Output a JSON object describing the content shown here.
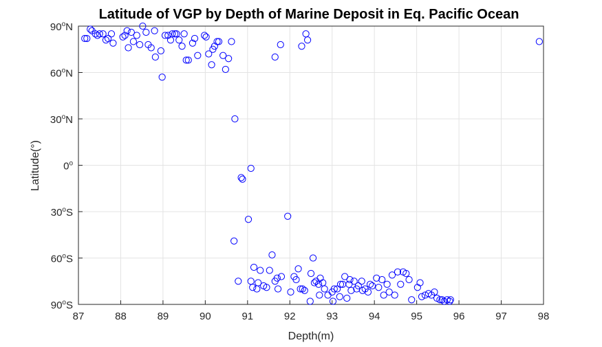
{
  "chart_data": {
    "type": "scatter",
    "title": "Latitude of VGP by Depth of Marine Deposit in Eq. Pacific Ocean",
    "xlabel": "Depth(m)",
    "ylabel": "Latitude(°)",
    "xlim": [
      87,
      98
    ],
    "ylim": [
      -90,
      90
    ],
    "grid": true,
    "marker": "open-circle",
    "marker_color": "#0000FF",
    "x_ticks": [
      {
        "value": 87,
        "label": "87"
      },
      {
        "value": 88,
        "label": "88"
      },
      {
        "value": 89,
        "label": "89"
      },
      {
        "value": 90,
        "label": "90"
      },
      {
        "value": 91,
        "label": "91"
      },
      {
        "value": 92,
        "label": "92"
      },
      {
        "value": 93,
        "label": "93"
      },
      {
        "value": 94,
        "label": "94"
      },
      {
        "value": 95,
        "label": "95"
      },
      {
        "value": 96,
        "label": "96"
      },
      {
        "value": 97,
        "label": "97"
      },
      {
        "value": 98,
        "label": "98"
      }
    ],
    "y_ticks": [
      {
        "value": 90,
        "num": "90",
        "hemi": "N"
      },
      {
        "value": 60,
        "num": "60",
        "hemi": "N"
      },
      {
        "value": 30,
        "num": "30",
        "hemi": "N"
      },
      {
        "value": 0,
        "num": "0",
        "hemi": ""
      },
      {
        "value": -30,
        "num": "30",
        "hemi": "S"
      },
      {
        "value": -60,
        "num": "60",
        "hemi": "S"
      },
      {
        "value": -90,
        "num": "90",
        "hemi": "S"
      }
    ],
    "points": [
      [
        87.15,
        82
      ],
      [
        87.2,
        82
      ],
      [
        87.28,
        88
      ],
      [
        87.32,
        87
      ],
      [
        87.4,
        85
      ],
      [
        87.45,
        84
      ],
      [
        87.5,
        85
      ],
      [
        87.58,
        85
      ],
      [
        87.65,
        81
      ],
      [
        87.7,
        82
      ],
      [
        87.78,
        85
      ],
      [
        87.82,
        79
      ],
      [
        88.05,
        83
      ],
      [
        88.1,
        84
      ],
      [
        88.15,
        87
      ],
      [
        88.18,
        76
      ],
      [
        88.25,
        86
      ],
      [
        88.3,
        80
      ],
      [
        88.38,
        84
      ],
      [
        88.45,
        78
      ],
      [
        88.52,
        90
      ],
      [
        88.6,
        86
      ],
      [
        88.65,
        78
      ],
      [
        88.72,
        76
      ],
      [
        88.8,
        87
      ],
      [
        88.82,
        70
      ],
      [
        88.95,
        74
      ],
      [
        88.98,
        57
      ],
      [
        89.05,
        84
      ],
      [
        89.12,
        84
      ],
      [
        89.18,
        81
      ],
      [
        89.22,
        85
      ],
      [
        89.28,
        85
      ],
      [
        89.32,
        85
      ],
      [
        89.38,
        81
      ],
      [
        89.45,
        77
      ],
      [
        89.5,
        85
      ],
      [
        89.55,
        68
      ],
      [
        89.6,
        68
      ],
      [
        89.7,
        79
      ],
      [
        89.75,
        82
      ],
      [
        89.82,
        71
      ],
      [
        89.98,
        84
      ],
      [
        90.02,
        83
      ],
      [
        90.08,
        72
      ],
      [
        90.15,
        65
      ],
      [
        90.18,
        75
      ],
      [
        90.22,
        77
      ],
      [
        90.28,
        80
      ],
      [
        90.32,
        80
      ],
      [
        90.42,
        71
      ],
      [
        90.48,
        62
      ],
      [
        90.55,
        69
      ],
      [
        90.62,
        80
      ],
      [
        90.7,
        30
      ],
      [
        90.85,
        -8
      ],
      [
        90.88,
        -9
      ],
      [
        91.02,
        -35
      ],
      [
        91.08,
        -2
      ],
      [
        90.68,
        -49
      ],
      [
        90.78,
        -75
      ],
      [
        91.15,
        -66
      ],
      [
        91.08,
        -75
      ],
      [
        91.12,
        -79
      ],
      [
        91.22,
        -80
      ],
      [
        91.25,
        -76
      ],
      [
        91.3,
        -68
      ],
      [
        91.38,
        -78
      ],
      [
        91.45,
        -79
      ],
      [
        91.52,
        -68
      ],
      [
        91.58,
        -58
      ],
      [
        91.65,
        -75
      ],
      [
        91.7,
        -73
      ],
      [
        91.72,
        -80
      ],
      [
        91.8,
        -72
      ],
      [
        91.65,
        70
      ],
      [
        91.78,
        78
      ],
      [
        91.95,
        -33
      ],
      [
        92.02,
        -82
      ],
      [
        92.1,
        -72
      ],
      [
        92.15,
        -74
      ],
      [
        92.2,
        -67
      ],
      [
        92.25,
        -80
      ],
      [
        92.3,
        -80
      ],
      [
        92.35,
        -81
      ],
      [
        92.28,
        77
      ],
      [
        92.38,
        85
      ],
      [
        92.42,
        81
      ],
      [
        92.48,
        -88
      ],
      [
        92.5,
        -70
      ],
      [
        92.55,
        -60
      ],
      [
        92.58,
        -76
      ],
      [
        92.62,
        -75
      ],
      [
        92.68,
        -77
      ],
      [
        92.72,
        -73
      ],
      [
        92.7,
        -84
      ],
      [
        92.78,
        -76
      ],
      [
        92.82,
        -80
      ],
      [
        92.9,
        -84
      ],
      [
        93.0,
        -82
      ],
      [
        93.02,
        -88
      ],
      [
        93.05,
        -80
      ],
      [
        93.12,
        -80
      ],
      [
        93.18,
        -85
      ],
      [
        93.2,
        -77
      ],
      [
        93.25,
        -77
      ],
      [
        93.3,
        -72
      ],
      [
        93.35,
        -86
      ],
      [
        93.4,
        -77
      ],
      [
        93.42,
        -74
      ],
      [
        93.45,
        -81
      ],
      [
        93.52,
        -75
      ],
      [
        93.58,
        -80
      ],
      [
        93.62,
        -78
      ],
      [
        93.7,
        -75
      ],
      [
        93.72,
        -81
      ],
      [
        93.78,
        -80
      ],
      [
        93.85,
        -82
      ],
      [
        93.9,
        -77
      ],
      [
        93.95,
        -78
      ],
      [
        94.05,
        -73
      ],
      [
        94.1,
        -79
      ],
      [
        94.18,
        -74
      ],
      [
        94.22,
        -84
      ],
      [
        94.3,
        -77
      ],
      [
        94.35,
        -82
      ],
      [
        94.42,
        -71
      ],
      [
        94.48,
        -84
      ],
      [
        94.55,
        -69
      ],
      [
        94.62,
        -77
      ],
      [
        94.68,
        -69
      ],
      [
        94.75,
        -70
      ],
      [
        94.82,
        -74
      ],
      [
        94.88,
        -87
      ],
      [
        95.02,
        -79
      ],
      [
        95.08,
        -76
      ],
      [
        95.12,
        -85
      ],
      [
        95.2,
        -84
      ],
      [
        95.28,
        -83
      ],
      [
        95.35,
        -84
      ],
      [
        95.42,
        -82
      ],
      [
        95.48,
        -86
      ],
      [
        95.55,
        -87
      ],
      [
        95.6,
        -87
      ],
      [
        95.65,
        -88
      ],
      [
        95.72,
        -87
      ],
      [
        95.78,
        -88
      ],
      [
        95.8,
        -87
      ],
      [
        97.9,
        80
      ]
    ]
  }
}
